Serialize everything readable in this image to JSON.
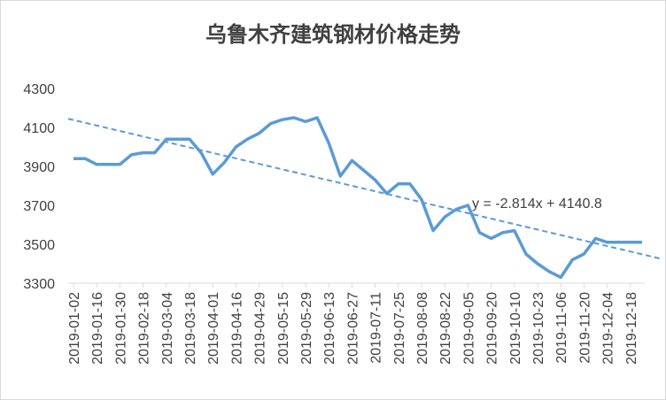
{
  "chart_data": {
    "type": "line",
    "title": "乌鲁木齐建筑钢材价格走势",
    "categories": [
      "2019-01-02",
      null,
      "2019-01-16",
      null,
      "2019-01-30",
      null,
      "2019-02-18",
      null,
      "2019-03-04",
      null,
      "2019-03-18",
      null,
      "2019-04-01",
      null,
      "2019-04-16",
      null,
      "2019-04-29",
      null,
      "2019-05-15",
      null,
      "2019-05-29",
      null,
      "2019-06-13",
      null,
      "2019-06-27",
      null,
      "2019-07-11",
      null,
      "2019-07-25",
      null,
      "2019-08-08",
      null,
      "2019-08-22",
      null,
      "2019-09-05",
      null,
      "2019-09-20",
      null,
      "2019-10-10",
      null,
      "2019-10-23",
      null,
      "2019-11-06",
      null,
      "2019-11-20",
      null,
      "2019-12-04",
      null,
      "2019-12-18",
      null
    ],
    "values": [
      3940,
      3940,
      3910,
      3910,
      3910,
      3960,
      3970,
      3970,
      4040,
      4040,
      4040,
      3970,
      3860,
      3920,
      4000,
      4040,
      4070,
      4120,
      4140,
      4150,
      4130,
      4150,
      4020,
      3850,
      3930,
      3880,
      3830,
      3760,
      3810,
      3810,
      3730,
      3570,
      3640,
      3680,
      3700,
      3560,
      3530,
      3560,
      3570,
      3450,
      3400,
      3360,
      3330,
      3420,
      3450,
      3530,
      3510,
      3510,
      3510,
      3510
    ],
    "color": "#5b9bd5",
    "ylim": [
      3300,
      4300
    ],
    "yticks": [
      3300,
      3500,
      3700,
      3900,
      4100,
      4300
    ],
    "grid": false,
    "trendline": {
      "slope": -2.814,
      "intercept": 4140.8,
      "label": "y = -2.814x + 4140.8"
    }
  }
}
